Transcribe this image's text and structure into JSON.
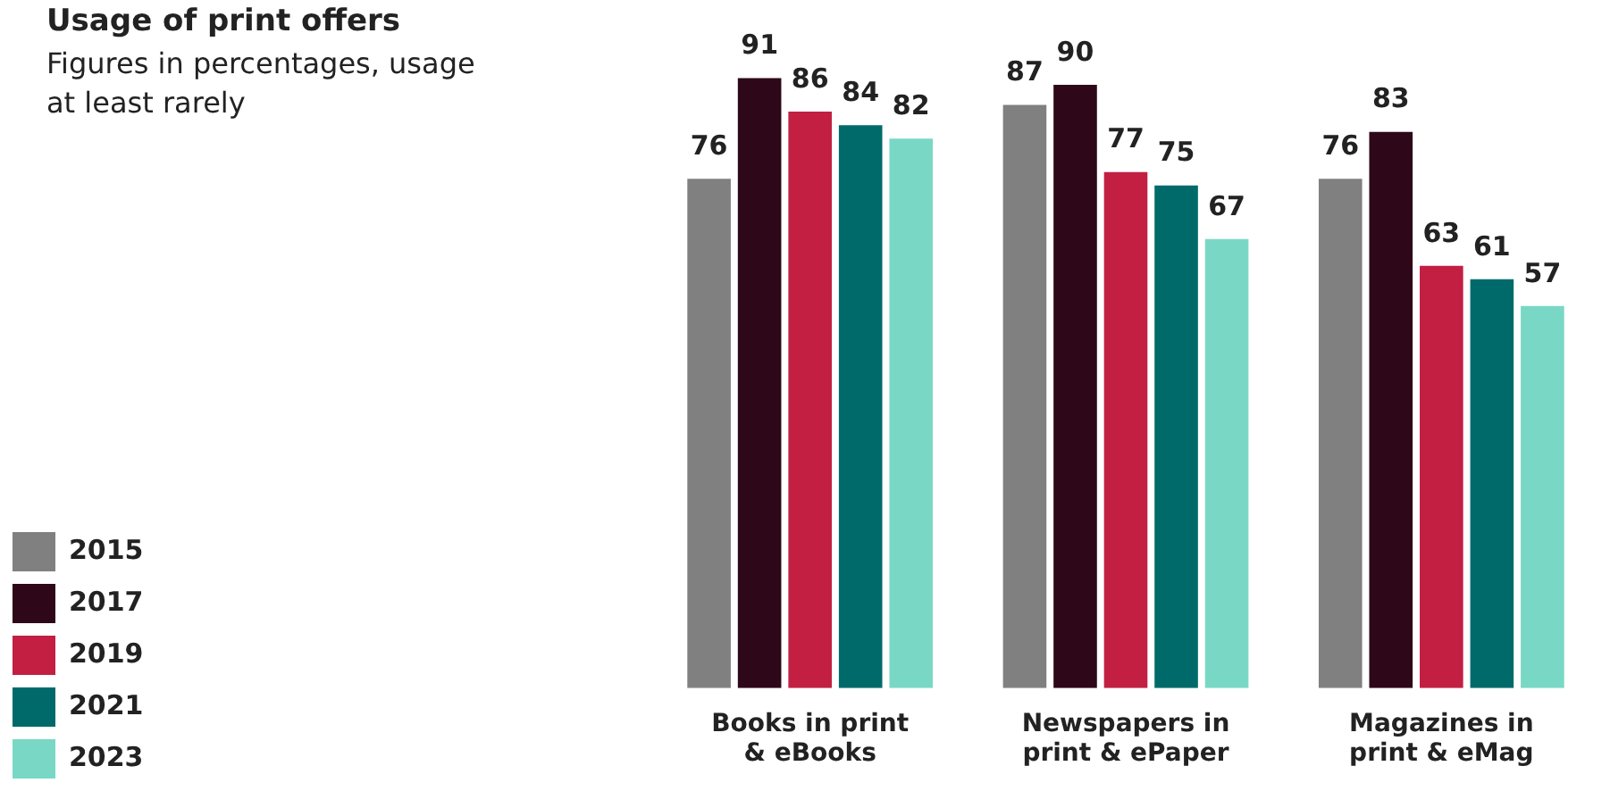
{
  "chart_data": {
    "type": "bar",
    "title": "Usage of print offers",
    "subtitle": "Figures in percentages, usage at least rarely",
    "categories": [
      "Books in print & eBooks",
      "Newspapers in print & ePaper",
      "Magazines in print & eMag"
    ],
    "series": [
      {
        "name": "2015",
        "color": "#808080",
        "values": [
          76,
          87,
          76
        ]
      },
      {
        "name": "2017",
        "color": "#2e0718",
        "values": [
          91,
          90,
          83
        ]
      },
      {
        "name": "2019",
        "color": "#c21f43",
        "values": [
          86,
          77,
          63
        ]
      },
      {
        "name": "2021",
        "color": "#006a6a",
        "values": [
          84,
          75,
          61
        ]
      },
      {
        "name": "2023",
        "color": "#79d8c5",
        "values": [
          82,
          67,
          57
        ]
      }
    ],
    "data_labels": true,
    "legend": "bottom left",
    "grid": false
  }
}
